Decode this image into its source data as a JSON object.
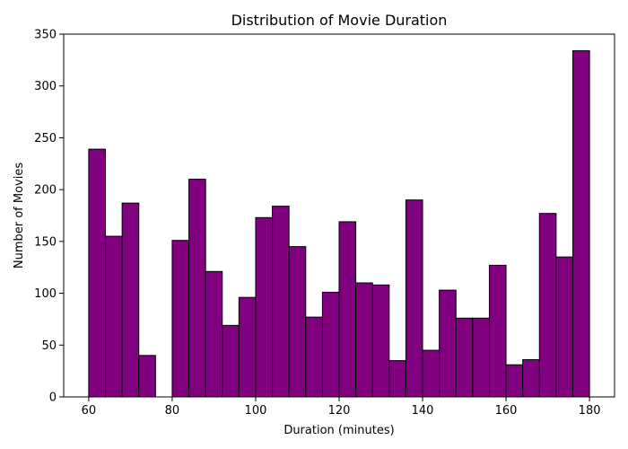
{
  "chart_data": {
    "type": "bar",
    "title": "Distribution of Movie Duration",
    "xlabel": "Duration (minutes)",
    "ylabel": "Number of Movies",
    "xlim": [
      54,
      186
    ],
    "ylim": [
      0,
      350
    ],
    "bin_start": 60,
    "bin_width": 4,
    "values": [
      239,
      155,
      187,
      40,
      0,
      151,
      210,
      121,
      69,
      96,
      173,
      184,
      145,
      77,
      101,
      169,
      110,
      108,
      35,
      190,
      45,
      103,
      76,
      76,
      127,
      31,
      36,
      177,
      135,
      334
    ],
    "xticks": [
      60,
      80,
      100,
      120,
      140,
      160,
      180
    ],
    "yticks": [
      0,
      50,
      100,
      150,
      200,
      250,
      300,
      350
    ],
    "colors": {
      "bar_fill": "#800080",
      "bar_edge": "#000000"
    },
    "grid": false
  }
}
